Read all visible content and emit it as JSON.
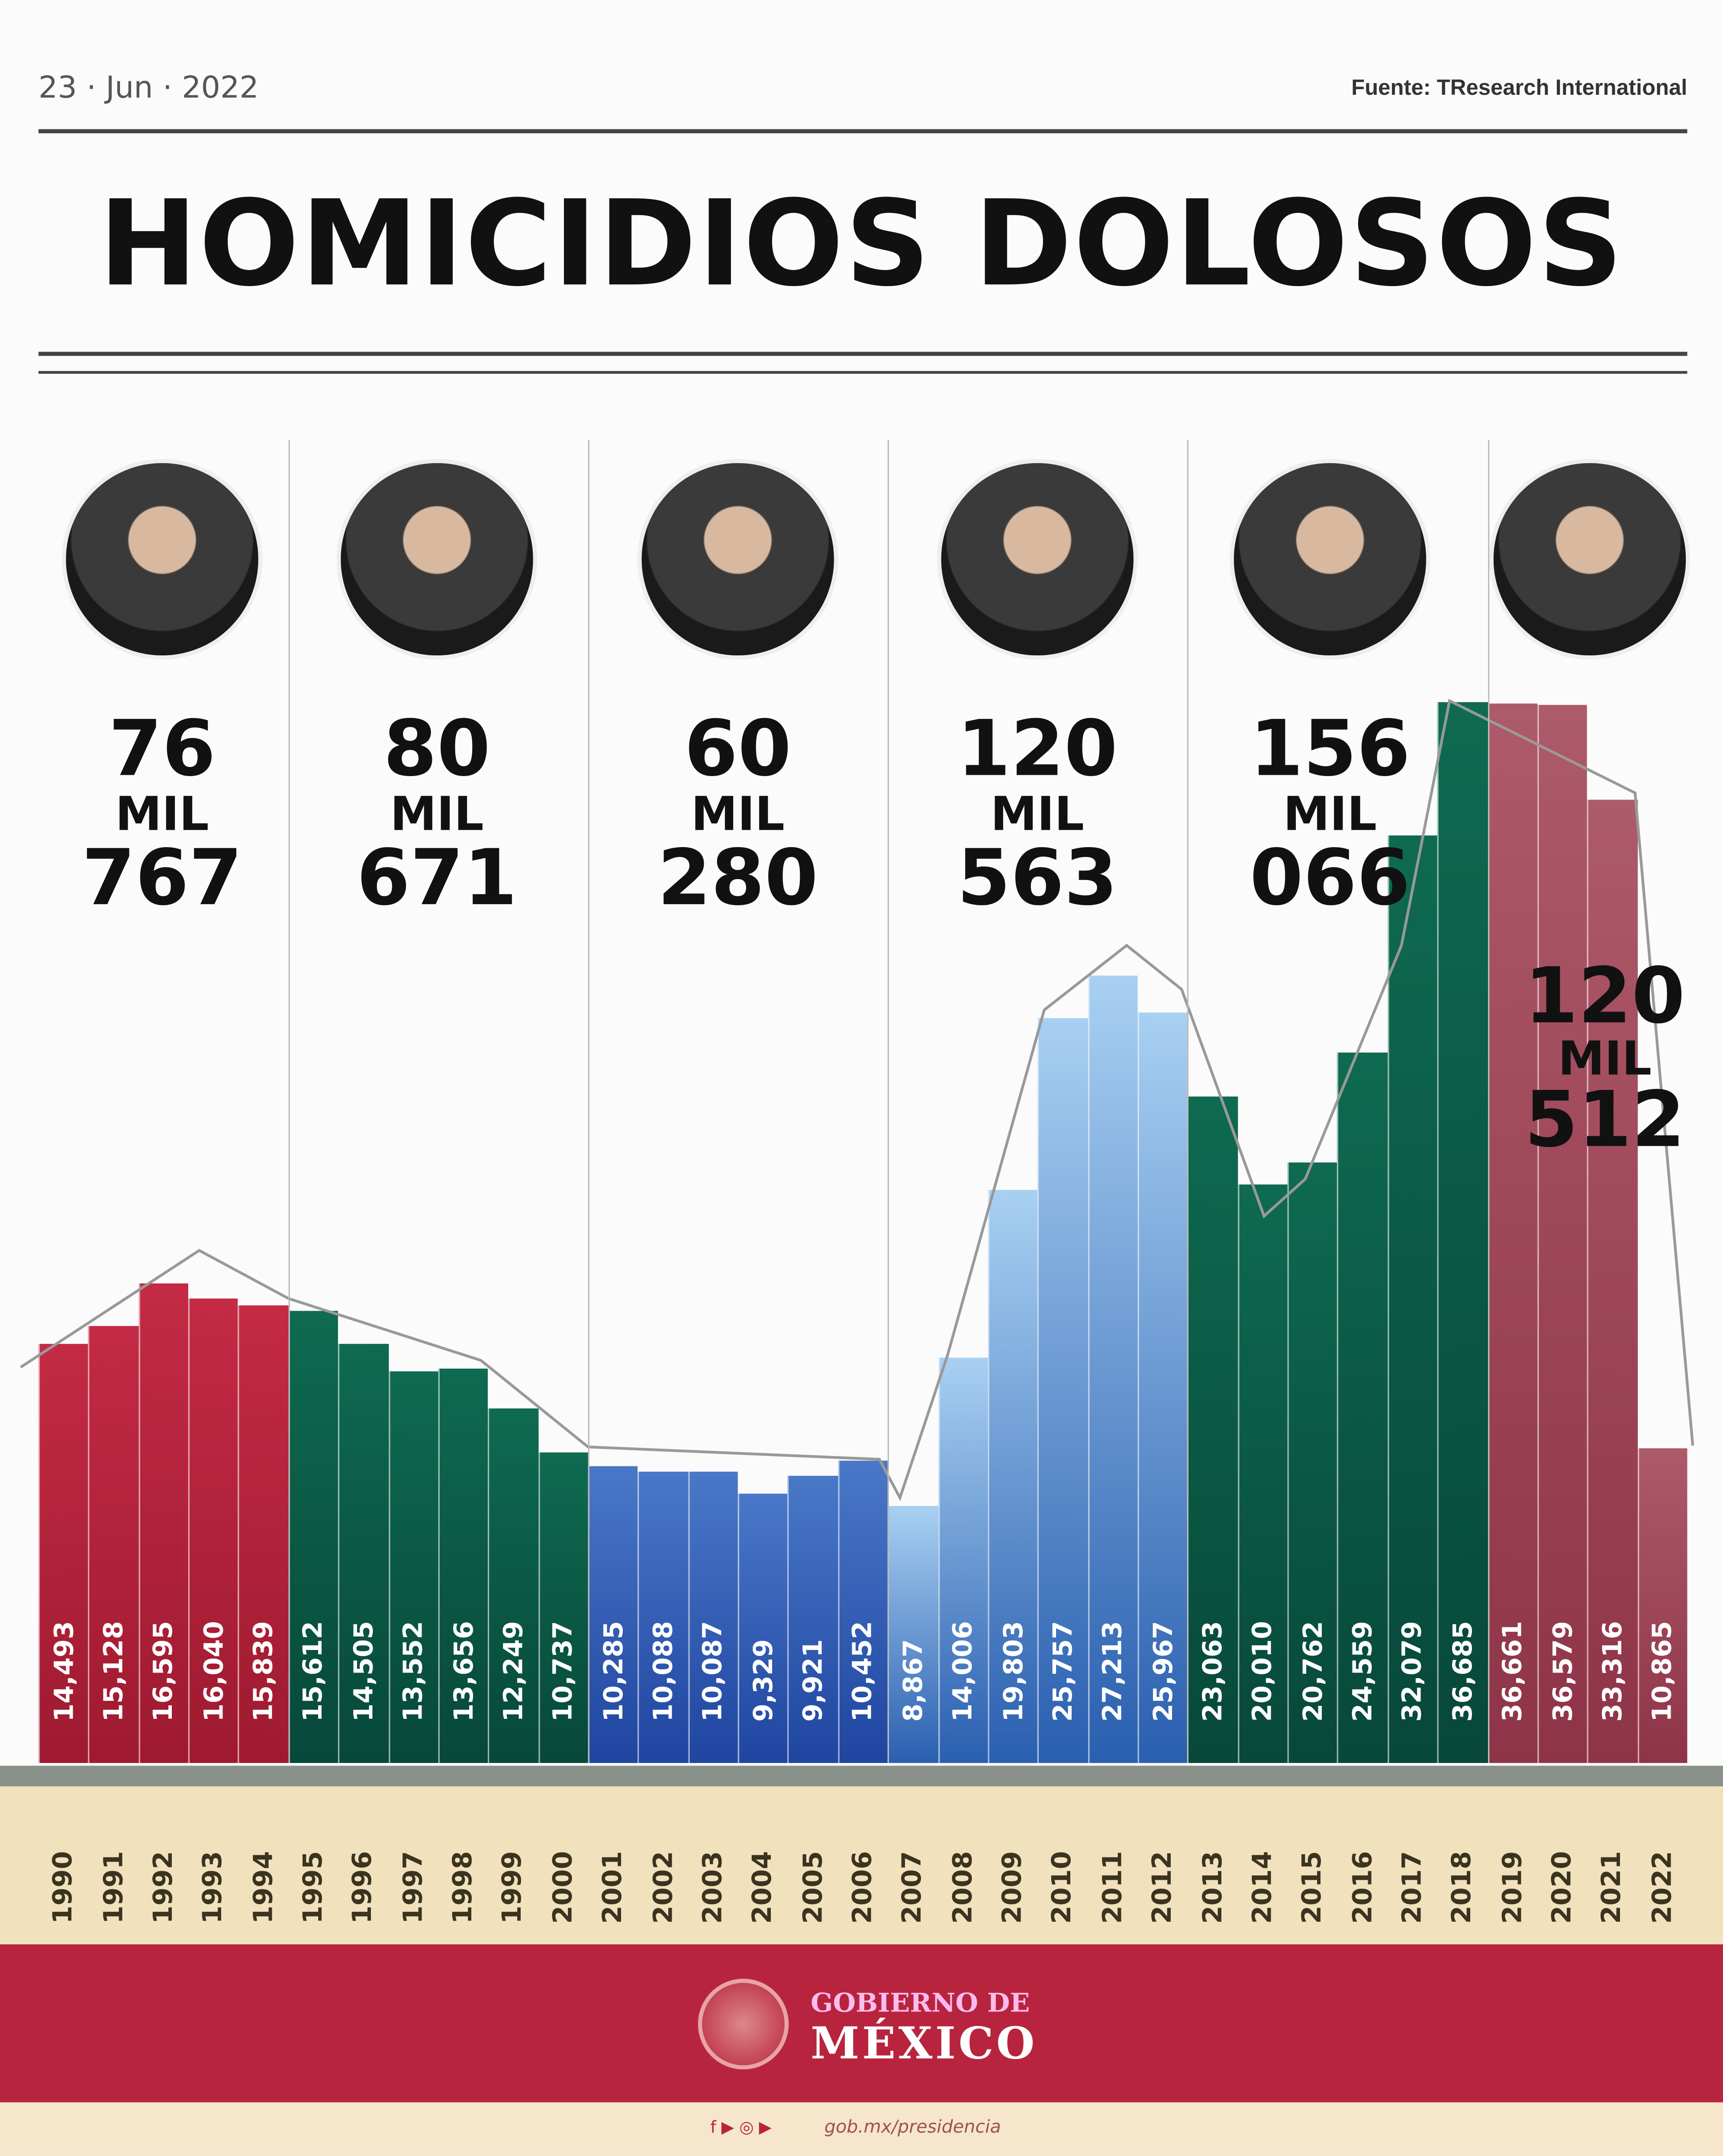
{
  "header": {
    "date": "23 · Jun · 2022",
    "source": "Fuente: TResearch International",
    "title": "HOMICIDIOS DOLOSOS"
  },
  "terms": [
    {
      "total": [
        "76",
        "MIL",
        "767"
      ],
      "color": "#b5213a"
    },
    {
      "total": [
        "80",
        "MIL",
        "671"
      ],
      "color": "#0b5a45"
    },
    {
      "total": [
        "60",
        "MIL",
        "280"
      ],
      "color": "#2b5cb8"
    },
    {
      "total": [
        "120",
        "MIL",
        "563"
      ],
      "color": "#6aa6e0"
    },
    {
      "total": [
        "156",
        "MIL",
        "066"
      ],
      "color": "#0b5a45"
    },
    {
      "total": [
        "120",
        "MIL",
        "512"
      ],
      "color": "#a24d5e"
    }
  ],
  "chart_data": {
    "type": "bar",
    "title": "HOMICIDIOS DOLOSOS",
    "categories": [
      "1990",
      "1991",
      "1992",
      "1993",
      "1994",
      "1995",
      "1996",
      "1997",
      "1998",
      "1999",
      "2000",
      "2001",
      "2002",
      "2003",
      "2004",
      "2005",
      "2006",
      "2007",
      "2008",
      "2009",
      "2010",
      "2011",
      "2012",
      "2013",
      "2014",
      "2015",
      "2016",
      "2017",
      "2018",
      "2019",
      "2020",
      "2021",
      "2022"
    ],
    "values": [
      14493,
      15128,
      16595,
      16040,
      15839,
      15612,
      14505,
      13552,
      13656,
      12249,
      10737,
      10285,
      10088,
      10087,
      9329,
      9921,
      10452,
      8867,
      14006,
      19803,
      25757,
      27213,
      25967,
      23063,
      20010,
      20762,
      24559,
      32079,
      36685,
      36661,
      36579,
      33316,
      10865
    ],
    "labels": [
      "14,493",
      "15,128",
      "16,595",
      "16,040",
      "15,839",
      "15,612",
      "14,505",
      "13,552",
      "13,656",
      "12,249",
      "10,737",
      "10,285",
      "10,088",
      "10,087",
      "9,329",
      "9,921",
      "10,452",
      "8,867",
      "14,006",
      "19,803",
      "25,757",
      "27,213",
      "25,967",
      "23,063",
      "20,010",
      "20,762",
      "24,559",
      "32,079",
      "36,685",
      "36,661",
      "36,579",
      "33,316",
      "10,865"
    ],
    "term_groups": [
      5,
      6,
      6,
      6,
      6,
      4
    ],
    "ylim": [
      0,
      37000
    ],
    "grid": false
  },
  "footer": {
    "logo_line1": "GOBIERNO DE",
    "logo_line2": "MÉXICO",
    "social": "f ▶ ◎ ▶",
    "url": "gob.mx/presidencia"
  }
}
